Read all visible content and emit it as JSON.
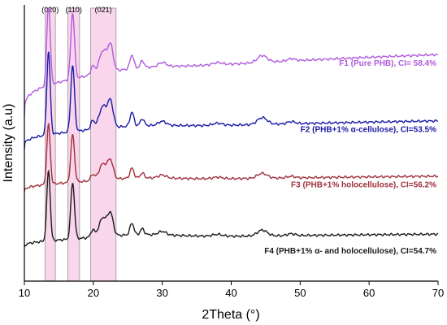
{
  "chart_data": {
    "type": "line",
    "title": "",
    "xlabel": "2Theta (°)",
    "ylabel": "Intensity (a.u)",
    "xlim": [
      10,
      70
    ],
    "x_ticks": [
      10,
      20,
      30,
      40,
      50,
      60,
      70
    ],
    "grid": false,
    "y_ticks": false,
    "highlight_bands": [
      {
        "label": "(020)",
        "x_start": 13.0,
        "x_end": 14.5,
        "color": "#f7c8e6"
      },
      {
        "label": "(110)",
        "x_start": 16.3,
        "x_end": 18.0,
        "color": "#f7c8e6"
      },
      {
        "label": "(021)",
        "x_start": 19.6,
        "x_end": 23.3,
        "color": "#f7c8e6"
      }
    ],
    "series": [
      {
        "name": "F1 (Pure PHB), CI= 58.4%",
        "color": "#b05cdc",
        "baseline": 0.6,
        "tail": 0.82
      },
      {
        "name": "F2 (PHB+1% α-cellulose), CI=53.5%",
        "color": "#1a1aa8",
        "baseline": 0.48,
        "tail": 0.58
      },
      {
        "name": "F3 (PHB+1% holocellulose), CI=56.2%",
        "color": "#a0303a",
        "baseline": 0.32,
        "tail": 0.38
      },
      {
        "name": "F4 (PHB+1% α- and holocellulose), CI=54.7%",
        "color": "#1a1a1a",
        "baseline": 0.12,
        "tail": 0.17
      }
    ]
  }
}
